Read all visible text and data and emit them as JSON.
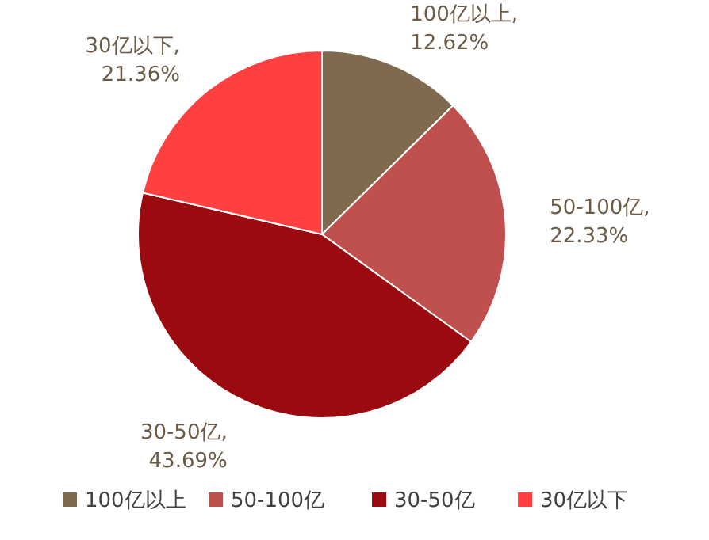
{
  "chart_data": {
    "type": "pie",
    "categories": [
      "100亿以上",
      "50-100亿",
      "30-50亿",
      "30亿以下"
    ],
    "values": [
      12.62,
      22.33,
      43.69,
      21.36
    ],
    "colors": [
      "#7f6a4f",
      "#c0504d",
      "#9b0a10",
      "#ff4040"
    ],
    "value_labels": [
      "100亿以上,\n12.62%",
      "50-100亿,\n22.33%",
      "30-50亿,\n43.69%",
      "30亿以下,\n21.36%"
    ],
    "legend": "bottom"
  }
}
